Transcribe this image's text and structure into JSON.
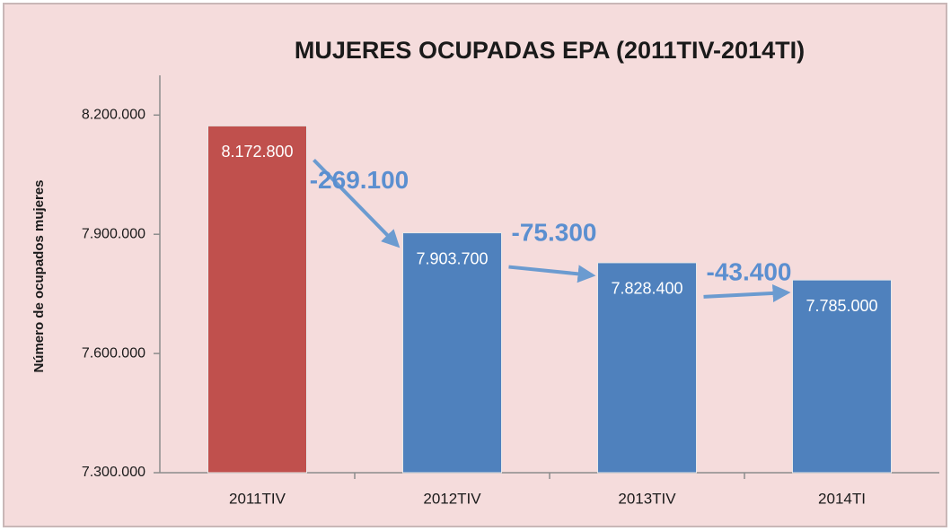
{
  "chart_data": {
    "type": "bar",
    "title": "MUJERES OCUPADAS EPA (2011TIV-2014TI)",
    "y_axis_label": "Número de ocupados mujeres",
    "categories": [
      "2011TIV",
      "2012TIV",
      "2013TIV",
      "2014TI"
    ],
    "values": [
      8172800,
      7903700,
      7828400,
      7785000
    ],
    "value_labels": [
      "8.172.800",
      "7.903.700",
      "7.828.400",
      "7.785.000"
    ],
    "colors": [
      "#c0504d",
      "#4f81bd",
      "#4f81bd",
      "#4f81bd"
    ],
    "annotations": [
      "-269.100",
      "-75.300",
      "-43.400"
    ],
    "ylim": [
      7300000,
      8300000
    ],
    "yticks": [
      {
        "value": 7300000,
        "label": "7.300.000"
      },
      {
        "value": 7600000,
        "label": "7.600.000"
      },
      {
        "value": 7900000,
        "label": "7.900.000"
      },
      {
        "value": 8200000,
        "label": "8.200.000"
      }
    ],
    "grid": false
  }
}
